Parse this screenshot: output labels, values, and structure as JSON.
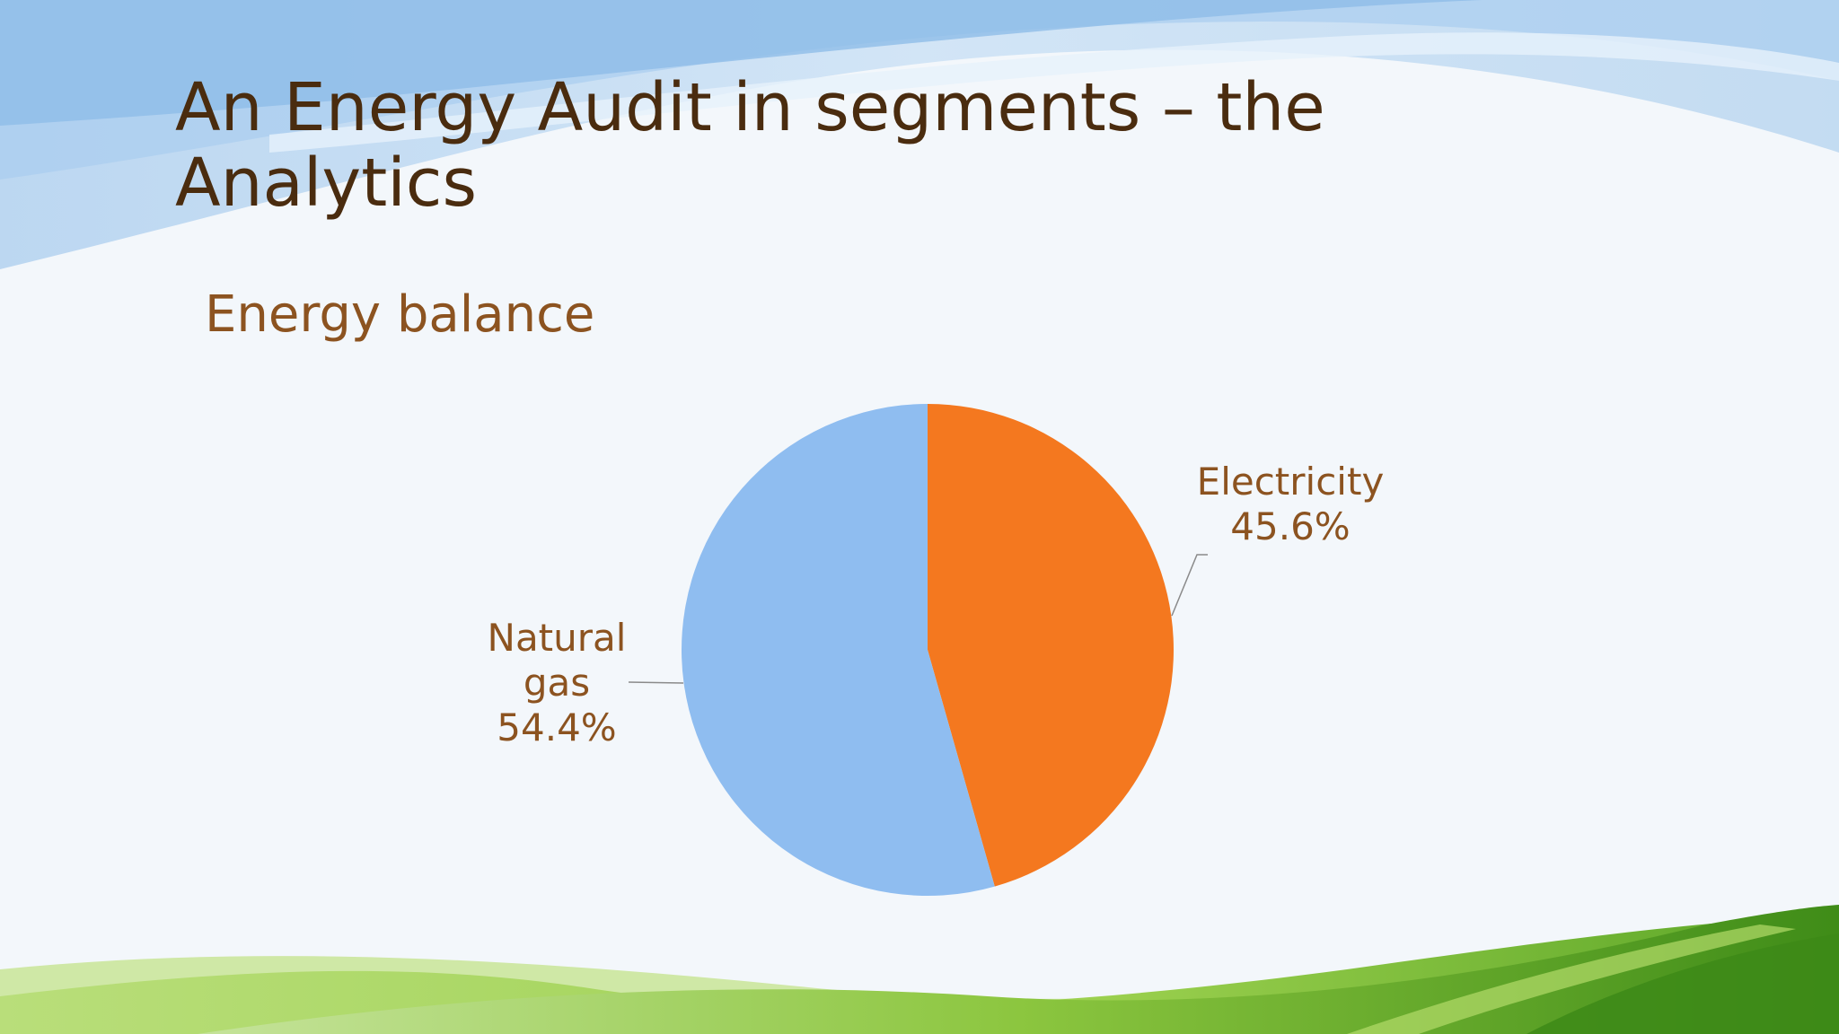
{
  "slide": {
    "title": "An Energy Audit in segments – the Analytics",
    "subtitle": "Energy balance"
  },
  "colors": {
    "title": "#4a2c0f",
    "subtitle": "#8c5320",
    "electricity": "#f4781f",
    "natural_gas": "#8fbdf0",
    "sky_dark": "#9cc5ea",
    "grass_dark": "#4e9a1f",
    "grass_light": "#a8d55a"
  },
  "chart_data": {
    "type": "pie",
    "title": "",
    "start_angle_deg": 0,
    "direction": "clockwise",
    "slices": [
      {
        "label_lines": [
          "Electricity",
          "45.6%"
        ],
        "value": 45.6,
        "color": "#f4781f"
      },
      {
        "label_lines": [
          "Natural",
          "gas",
          "54.4%"
        ],
        "value": 54.4,
        "color": "#8fbdf0"
      }
    ]
  }
}
